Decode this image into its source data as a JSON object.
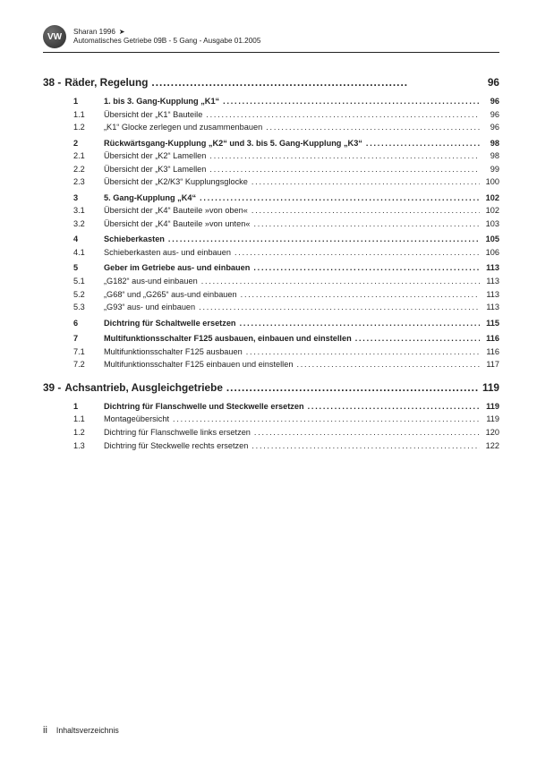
{
  "header": {
    "model": "Sharan 1996",
    "arrow": "➤",
    "subtitle": "Automatisches Getriebe 09B - 5 Gang - Ausgabe 01.2005",
    "logo_text": "VW"
  },
  "sections": [
    {
      "number": "38 -",
      "title": "Räder, Regelung",
      "page": "96",
      "items": [
        {
          "num": "1",
          "label": "1. bis 3. Gang-Kupplung „K1“",
          "page": "96",
          "bold": true,
          "gap": false
        },
        {
          "num": "1.1",
          "label": "Übersicht der „K1“ Bauteile",
          "page": "96",
          "bold": false,
          "gap": false
        },
        {
          "num": "1.2",
          "label": "„K1“ Glocke zerlegen und zusammenbauen",
          "page": "96",
          "bold": false,
          "gap": false
        },
        {
          "num": "2",
          "label": "Rückwärtsgang-Kupplung „K2“ und 3. bis 5. Gang-Kupplung „K3“",
          "page": "98",
          "bold": true,
          "gap": true
        },
        {
          "num": "2.1",
          "label": "Übersicht der „K2“ Lamellen",
          "page": "98",
          "bold": false,
          "gap": false
        },
        {
          "num": "2.2",
          "label": "Übersicht der „K3“ Lamellen",
          "page": "99",
          "bold": false,
          "gap": false
        },
        {
          "num": "2.3",
          "label": "Übersicht der „K2/K3“ Kupplungsglocke",
          "page": "100",
          "bold": false,
          "gap": false
        },
        {
          "num": "3",
          "label": "5. Gang-Kupplung „K4“",
          "page": "102",
          "bold": true,
          "gap": true
        },
        {
          "num": "3.1",
          "label": "Übersicht der „K4“ Bauteile »von oben«",
          "page": "102",
          "bold": false,
          "gap": false
        },
        {
          "num": "3.2",
          "label": "Übersicht der „K4“ Bauteile »von unten«",
          "page": "103",
          "bold": false,
          "gap": false
        },
        {
          "num": "4",
          "label": "Schieberkasten",
          "page": "105",
          "bold": true,
          "gap": true
        },
        {
          "num": "4.1",
          "label": "Schieberkasten aus- und einbauen",
          "page": "106",
          "bold": false,
          "gap": false
        },
        {
          "num": "5",
          "label": "Geber im Getriebe aus- und einbauen",
          "page": "113",
          "bold": true,
          "gap": true
        },
        {
          "num": "5.1",
          "label": "„G182“ aus-und einbauen",
          "page": "113",
          "bold": false,
          "gap": false
        },
        {
          "num": "5.2",
          "label": "„G68“ und „G265“ aus-und einbauen",
          "page": "113",
          "bold": false,
          "gap": false
        },
        {
          "num": "5.3",
          "label": "„G93“ aus- und einbauen",
          "page": "113",
          "bold": false,
          "gap": false
        },
        {
          "num": "6",
          "label": "Dichtring für Schaltwelle ersetzen",
          "page": "115",
          "bold": true,
          "gap": true
        },
        {
          "num": "7",
          "label": "Multifunktionsschalter F125 ausbauen, einbauen und einstellen",
          "page": "116",
          "bold": true,
          "gap": true
        },
        {
          "num": "7.1",
          "label": "Multifunktionsschalter F125 ausbauen",
          "page": "116",
          "bold": false,
          "gap": false
        },
        {
          "num": "7.2",
          "label": "Multifunktionsschalter F125 einbauen und einstellen",
          "page": "117",
          "bold": false,
          "gap": false
        }
      ]
    },
    {
      "number": "39 -",
      "title": "Achsantrieb, Ausgleichgetriebe",
      "page": "119",
      "items": [
        {
          "num": "1",
          "label": "Dichtring für Flanschwelle und Steckwelle ersetzen",
          "page": "119",
          "bold": true,
          "gap": false
        },
        {
          "num": "1.1",
          "label": "Montageübersicht",
          "page": "119",
          "bold": false,
          "gap": false
        },
        {
          "num": "1.2",
          "label": "Dichtring für Flanschwelle links ersetzen",
          "page": "120",
          "bold": false,
          "gap": false
        },
        {
          "num": "1.3",
          "label": "Dichtring für Steckwelle rechts ersetzen",
          "page": "122",
          "bold": false,
          "gap": false
        }
      ]
    }
  ],
  "footer": {
    "pagenum": "ii",
    "label": "Inhaltsverzeichnis"
  }
}
